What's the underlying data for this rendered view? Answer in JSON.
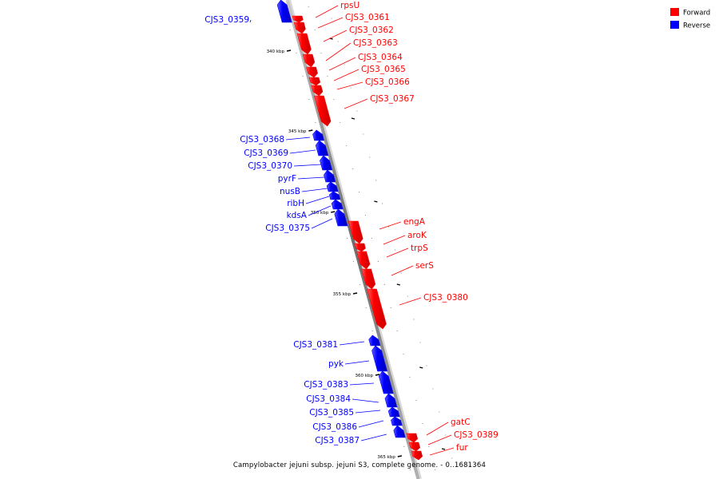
{
  "caption": "Campylobacter jejuni subsp. jejuni S3, complete genome. - 0..1681364",
  "legend": {
    "items": [
      {
        "label": "Forward",
        "color": "#ff0000"
      },
      {
        "label": "Reverse",
        "color": "#0000ff"
      }
    ]
  },
  "colors": {
    "forward": "#ff0000",
    "reverse": "#0000ff",
    "backbone": "#808080"
  },
  "ticks": [
    {
      "label": "340 kbp"
    },
    {
      "label": "345 kbp"
    },
    {
      "label": "350 kbp"
    },
    {
      "label": "355 kbp"
    },
    {
      "label": "360 kbp"
    },
    {
      "label": "365 kbp"
    }
  ],
  "genes": [
    {
      "name": "CJS3_0359",
      "strand": "reverse"
    },
    {
      "name": "rpsU",
      "strand": "forward"
    },
    {
      "name": "CJS3_0361",
      "strand": "forward"
    },
    {
      "name": "CJS3_0362",
      "strand": "forward"
    },
    {
      "name": "CJS3_0363",
      "strand": "forward"
    },
    {
      "name": "CJS3_0364",
      "strand": "forward"
    },
    {
      "name": "CJS3_0365",
      "strand": "forward"
    },
    {
      "name": "CJS3_0366",
      "strand": "forward"
    },
    {
      "name": "CJS3_0367",
      "strand": "forward"
    },
    {
      "name": "CJS3_0368",
      "strand": "reverse"
    },
    {
      "name": "CJS3_0369",
      "strand": "reverse"
    },
    {
      "name": "CJS3_0370",
      "strand": "reverse"
    },
    {
      "name": "pyrF",
      "strand": "reverse"
    },
    {
      "name": "nusB",
      "strand": "reverse"
    },
    {
      "name": "ribH",
      "strand": "reverse"
    },
    {
      "name": "kdsA",
      "strand": "reverse"
    },
    {
      "name": "CJS3_0375",
      "strand": "reverse"
    },
    {
      "name": "engA",
      "strand": "forward"
    },
    {
      "name": "aroK",
      "strand": "forward"
    },
    {
      "name": "trpS",
      "strand": "forward"
    },
    {
      "name": "serS",
      "strand": "forward"
    },
    {
      "name": "CJS3_0380",
      "strand": "forward"
    },
    {
      "name": "CJS3_0381",
      "strand": "reverse"
    },
    {
      "name": "pyk",
      "strand": "reverse"
    },
    {
      "name": "CJS3_0383",
      "strand": "reverse"
    },
    {
      "name": "CJS3_0384",
      "strand": "reverse"
    },
    {
      "name": "CJS3_0385",
      "strand": "reverse"
    },
    {
      "name": "CJS3_0386",
      "strand": "reverse"
    },
    {
      "name": "CJS3_0387",
      "strand": "reverse"
    },
    {
      "name": "gatC",
      "strand": "forward"
    },
    {
      "name": "CJS3_0389",
      "strand": "forward"
    },
    {
      "name": "fur",
      "strand": "forward"
    }
  ]
}
